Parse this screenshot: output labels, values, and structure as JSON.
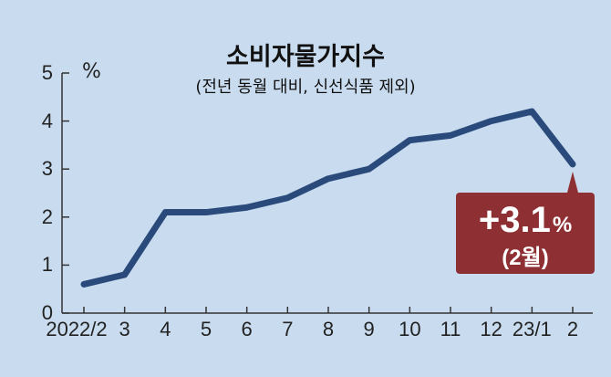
{
  "chart_data": {
    "type": "line",
    "title": "소비자물가지수",
    "subtitle": "(전년 동월 대비, 신선식품 제외)",
    "unit": "%",
    "categories": [
      "2022/2",
      "3",
      "4",
      "5",
      "6",
      "7",
      "8",
      "9",
      "10",
      "11",
      "12",
      "23/1",
      "2"
    ],
    "values": [
      0.6,
      0.8,
      2.1,
      2.1,
      2.2,
      2.4,
      2.8,
      3.0,
      3.6,
      3.7,
      4.0,
      4.2,
      3.1
    ],
    "ylim": [
      0,
      5
    ],
    "yticks": [
      "0",
      "1",
      "2",
      "3",
      "4",
      "5"
    ],
    "grid": false,
    "line_color": "#2a4a7c",
    "callout": {
      "value": "+3.1",
      "unit": "%",
      "note": "(2월)",
      "color": "#8e3033"
    }
  }
}
